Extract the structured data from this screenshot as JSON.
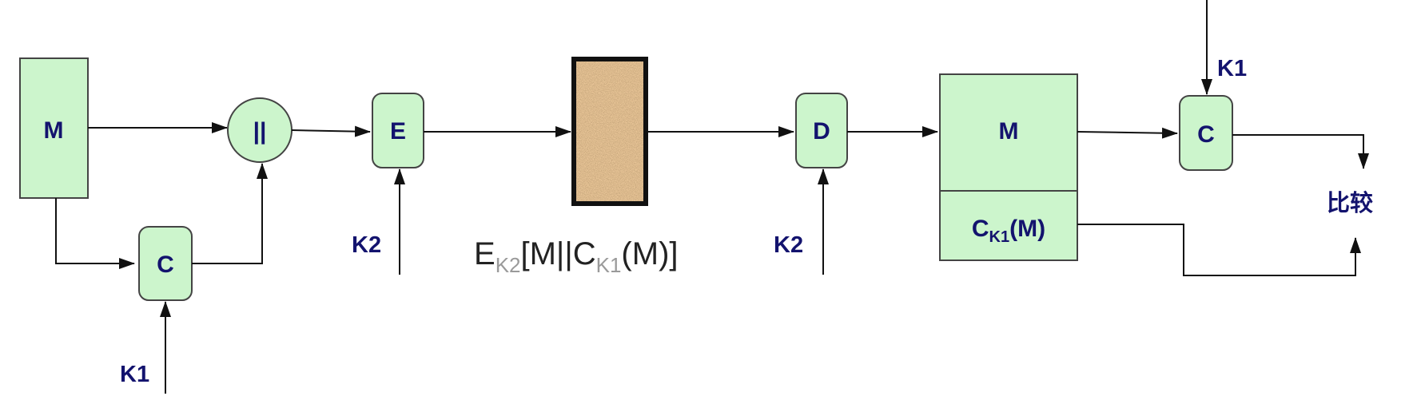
{
  "sender": {
    "message_label": "M",
    "concat_label": "||",
    "mac_label": "C",
    "encrypt_label": "E",
    "key_mac": "K1",
    "key_encrypt": "K2"
  },
  "channel": {
    "caption_main_1": "E",
    "caption_sub_1": "K2",
    "caption_main_2": "[M||C",
    "caption_sub_2": "K1",
    "caption_main_3": "(M)]"
  },
  "receiver": {
    "decrypt_label": "D",
    "key_decrypt": "K2",
    "message_label": "M",
    "tag_main": "C",
    "tag_sub": "K1",
    "tag_arg": "(M)",
    "mac_label": "C",
    "key_mac": "K1",
    "compare_label": "比较"
  },
  "colors": {
    "box_fill": "#ccf5cc",
    "label_text": "#13136e",
    "noise_block": "#b89060"
  }
}
